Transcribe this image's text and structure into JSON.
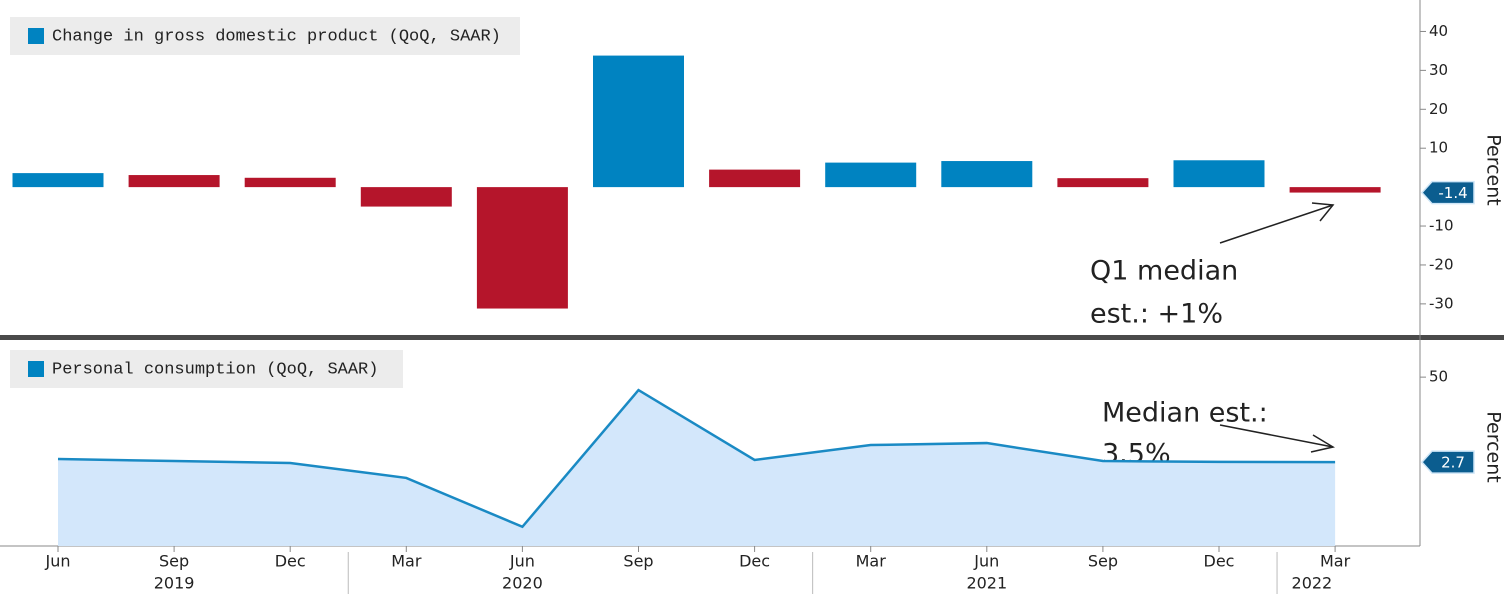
{
  "chart_data": [
    {
      "type": "bar",
      "legend": "Change in gross domestic product (QoQ, SAAR)",
      "y_label": "Percent",
      "values": [
        3.6,
        3.1,
        2.4,
        -5.0,
        -31.2,
        33.8,
        4.5,
        6.3,
        6.7,
        2.3,
        6.9,
        -1.4
      ],
      "colors": [
        "#0083c1",
        "#b5152b",
        "#b5152b",
        "#b5152b",
        "#b5152b",
        "#0083c1",
        "#b5152b",
        "#0083c1",
        "#0083c1",
        "#b5152b",
        "#0083c1",
        "#b5152b"
      ],
      "ylim": [
        -38,
        45
      ],
      "yticks": [
        40,
        30,
        20,
        10,
        -10,
        -20,
        -30
      ],
      "annotation": [
        "Q1 median",
        "est.: +1%"
      ]
    },
    {
      "type": "area",
      "legend": "Personal consumption (QoQ, SAAR)",
      "y_label": "Percent",
      "categories": [
        "Jun",
        "Sep",
        "Dec",
        "Mar",
        "Jun",
        "Sep",
        "Dec",
        "Mar",
        "Jun",
        "Sep",
        "Dec",
        "Mar"
      ],
      "years": [
        "2019",
        "2020",
        "2021",
        "2022"
      ],
      "values": [
        4.4,
        3.3,
        2.2,
        -6.1,
        -33.3,
        42.8,
        3.9,
        12.2,
        13.3,
        3.3,
        2.8,
        2.7
      ],
      "color": "#1a8ac4",
      "fill": "#d3e7fb",
      "ylim": [
        -44,
        69
      ],
      "yticks": [
        50
      ],
      "annotation": [
        "Median est.:",
        "3.5%"
      ]
    }
  ]
}
